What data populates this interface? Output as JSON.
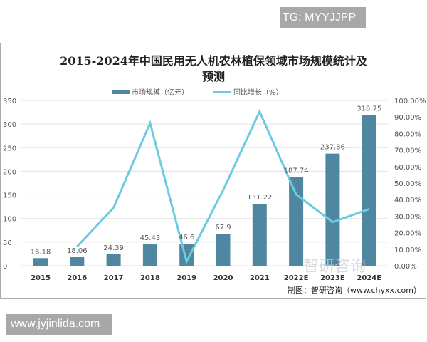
{
  "watermark_top": "TG: MYYJJPP",
  "watermark_bottom": "www.jyjinlida.com",
  "source_note": "制图：智研咨询（www.chyxx.com）",
  "logo_watermark": "智研咨询 www.chyxx.com",
  "colors": {
    "bar": "#4f87a0",
    "line": "#6ccbe0",
    "grid": "#e0e0e0"
  },
  "chart_data": {
    "type": "bar",
    "title": "2015-2024年中国民用无人机农林植保领域市场规模统计及预测",
    "categories": [
      "2015",
      "2016",
      "2017",
      "2018",
      "2019",
      "2020",
      "2021",
      "2022E",
      "2023E",
      "2024E"
    ],
    "series": [
      {
        "name": "市场规模（亿元）",
        "type": "bar",
        "axis": "left",
        "values": [
          16.18,
          18.06,
          24.39,
          45.43,
          46.6,
          67.9,
          131.22,
          187.74,
          237.36,
          318.75
        ],
        "labels": [
          "16.18",
          "18.06",
          "24.39",
          "45.43",
          "46.6",
          "67.9",
          "131.22",
          "187.74",
          "237.36",
          "318.75"
        ]
      },
      {
        "name": "同比增长（%）",
        "type": "line",
        "axis": "right",
        "values": [
          null,
          11.6,
          35.1,
          86.3,
          2.6,
          45.7,
          93.3,
          43.1,
          26.4,
          34.3
        ]
      }
    ],
    "left_axis": {
      "ylim": [
        0,
        350
      ],
      "ticks": [
        "0",
        "50",
        "100",
        "150",
        "200",
        "250",
        "300",
        "350"
      ]
    },
    "right_axis": {
      "ylim": [
        0,
        100
      ],
      "ticks": [
        "0.00%",
        "10.00%",
        "20.00%",
        "30.00%",
        "40.00%",
        "50.00%",
        "60.00%",
        "70.00%",
        "80.00%",
        "90.00%",
        "100.00%"
      ]
    },
    "grid": true,
    "legend": "top"
  }
}
